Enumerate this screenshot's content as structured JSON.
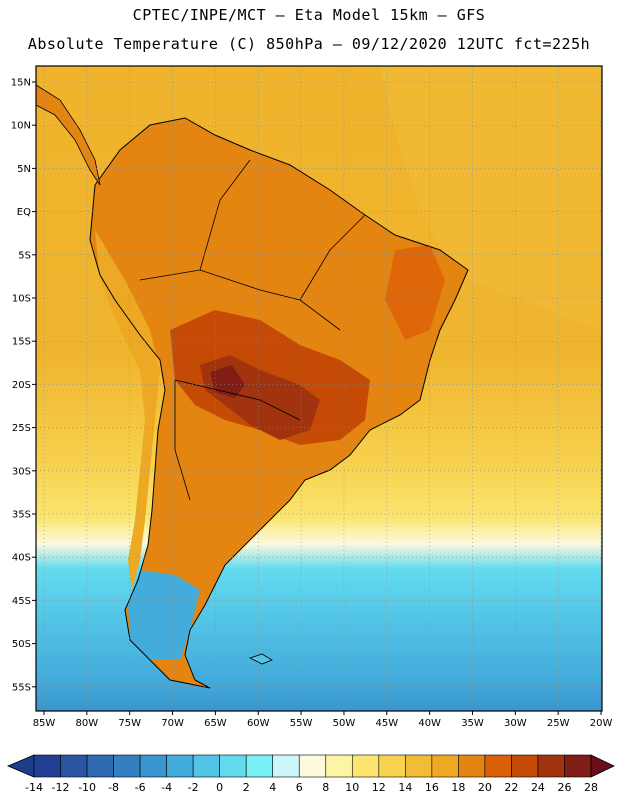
{
  "title_line1": "CPTEC/INPE/MCT –  Eta Model 15km – GFS",
  "title_line2": "Absolute Temperature (C) 850hPa – 09/12/2020 12UTC fct=225h",
  "lat_ticks": [
    "15N",
    "10N",
    "5N",
    "EQ",
    "5S",
    "10S",
    "15S",
    "20S",
    "25S",
    "30S",
    "35S",
    "40S",
    "45S",
    "50S",
    "55S"
  ],
  "lon_ticks": [
    "85W",
    "80W",
    "75W",
    "70W",
    "65W",
    "60W",
    "55W",
    "50W",
    "45W",
    "40W",
    "35W",
    "30W",
    "25W",
    "20W"
  ],
  "colorbar": {
    "labels": [
      "-14",
      "-12",
      "-10",
      "-8",
      "-6",
      "-4",
      "-2",
      "0",
      "2",
      "4",
      "6",
      "8",
      "10",
      "12",
      "14",
      "16",
      "18",
      "20",
      "22",
      "24",
      "26",
      "28"
    ],
    "low_color": "#1d3c8c",
    "high_color": "#6a0f1a",
    "colors": [
      "#223f93",
      "#2a55a3",
      "#2f6ab3",
      "#347fc1",
      "#3a96cf",
      "#44acdb",
      "#52c4e6",
      "#62dbef",
      "#78f0f5",
      "#cdf6fb",
      "#fdf9dc",
      "#fdf5a6",
      "#fbe56e",
      "#f7d24e",
      "#f1bd37",
      "#eda923",
      "#e48512",
      "#db5f08",
      "#c44a05",
      "#a1330e",
      "#7f1d16"
    ]
  },
  "colors": {
    "ocean_warm": "#efb42c",
    "ocean_mid": "#f7d24e",
    "ocean_cool": "#52c4e6",
    "ocean_cold": "#3a96cf",
    "land_warm": "#e48512",
    "land_hot": "#c44a05",
    "land_hottest": "#7f1d16"
  }
}
